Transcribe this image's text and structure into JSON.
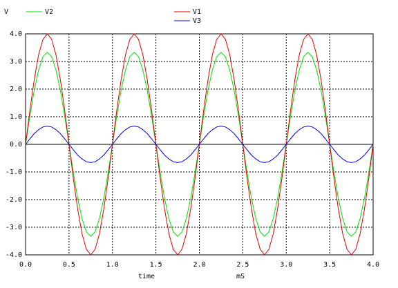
{
  "chart_data": {
    "type": "line",
    "ylabel": "V",
    "xlabel": "time",
    "xunit": "mS",
    "x": [
      0,
      0.05,
      0.1,
      0.15,
      0.2,
      0.25,
      0.3,
      0.35,
      0.4,
      0.45,
      0.5,
      0.55,
      0.6,
      0.65,
      0.7,
      0.75,
      0.8,
      0.85,
      0.9,
      0.95,
      1,
      1.05,
      1.1,
      1.15,
      1.2,
      1.25,
      1.3,
      1.35,
      1.4,
      1.45,
      1.5,
      1.55,
      1.6,
      1.65,
      1.7,
      1.75,
      1.8,
      1.85,
      1.9,
      1.95,
      2,
      2.05,
      2.1,
      2.15,
      2.2,
      2.25,
      2.3,
      2.35,
      2.4,
      2.45,
      2.5,
      2.55,
      2.6,
      2.65,
      2.7,
      2.75,
      2.8,
      2.85,
      2.9,
      2.95,
      3,
      3.05,
      3.1,
      3.15,
      3.2,
      3.25,
      3.3,
      3.35,
      3.4,
      3.45,
      3.5,
      3.55,
      3.6,
      3.65,
      3.7,
      3.75,
      3.8,
      3.85,
      3.9,
      3.95,
      4
    ],
    "series": [
      {
        "name": "V2",
        "color": "#00e000",
        "values": [
          0,
          1.03,
          1.96,
          2.69,
          3.17,
          3.33,
          3.17,
          2.69,
          1.96,
          1.03,
          0,
          -1.03,
          -1.96,
          -2.69,
          -3.17,
          -3.33,
          -3.17,
          -2.69,
          -1.96,
          -1.03,
          0,
          1.03,
          1.96,
          2.69,
          3.17,
          3.33,
          3.17,
          2.69,
          1.96,
          1.03,
          0,
          -1.03,
          -1.96,
          -2.69,
          -3.17,
          -3.33,
          -3.17,
          -2.69,
          -1.96,
          -1.03,
          0,
          1.03,
          1.96,
          2.69,
          3.17,
          3.33,
          3.17,
          2.69,
          1.96,
          1.03,
          0,
          -1.03,
          -1.96,
          -2.69,
          -3.17,
          -3.33,
          -3.17,
          -2.69,
          -1.96,
          -1.03,
          0,
          1.03,
          1.96,
          2.69,
          3.17,
          3.33,
          3.17,
          2.69,
          1.96,
          1.03,
          0,
          -1.03,
          -1.96,
          -2.69,
          -3.17,
          -3.33,
          -3.17,
          -2.69,
          -1.96,
          -1.03,
          0
        ]
      },
      {
        "name": "V1",
        "color": "#e00000",
        "values": [
          0,
          1.24,
          2.35,
          3.24,
          3.8,
          4,
          3.8,
          3.24,
          2.35,
          1.24,
          0,
          -1.24,
          -2.35,
          -3.24,
          -3.8,
          -4,
          -3.8,
          -3.24,
          -2.35,
          -1.24,
          0,
          1.24,
          2.35,
          3.24,
          3.8,
          4,
          3.8,
          3.24,
          2.35,
          1.24,
          0,
          -1.24,
          -2.35,
          -3.24,
          -3.8,
          -4,
          -3.8,
          -3.24,
          -2.35,
          -1.24,
          0,
          1.24,
          2.35,
          3.24,
          3.8,
          4,
          3.8,
          3.24,
          2.35,
          1.24,
          0,
          -1.24,
          -2.35,
          -3.24,
          -3.8,
          -4,
          -3.8,
          -3.24,
          -2.35,
          -1.24,
          0,
          1.24,
          2.35,
          3.24,
          3.8,
          4,
          3.8,
          3.24,
          2.35,
          1.24,
          0,
          -1.24,
          -2.35,
          -3.24,
          -3.8,
          -4,
          -3.8,
          -3.24,
          -2.35,
          -1.24,
          0
        ]
      },
      {
        "name": "V3",
        "color": "#0000e0",
        "values": [
          0,
          0.2,
          0.39,
          0.53,
          0.63,
          0.66,
          0.63,
          0.53,
          0.39,
          0.2,
          0,
          -0.2,
          -0.39,
          -0.53,
          -0.63,
          -0.66,
          -0.63,
          -0.53,
          -0.39,
          -0.2,
          0,
          0.2,
          0.39,
          0.53,
          0.63,
          0.66,
          0.63,
          0.53,
          0.39,
          0.2,
          0,
          -0.2,
          -0.39,
          -0.53,
          -0.63,
          -0.66,
          -0.63,
          -0.53,
          -0.39,
          -0.2,
          0,
          0.2,
          0.39,
          0.53,
          0.63,
          0.66,
          0.63,
          0.53,
          0.39,
          0.2,
          0,
          -0.2,
          -0.39,
          -0.53,
          -0.63,
          -0.66,
          -0.63,
          -0.53,
          -0.39,
          -0.2,
          0,
          0.2,
          0.39,
          0.53,
          0.63,
          0.66,
          0.63,
          0.53,
          0.39,
          0.2,
          0,
          -0.2,
          -0.39,
          -0.53,
          -0.63,
          -0.66,
          -0.63,
          -0.53,
          -0.39,
          -0.2,
          0
        ]
      }
    ],
    "xlim": [
      0,
      4
    ],
    "xticks": [
      {
        "value": 0,
        "label": "0.0"
      },
      0.5,
      {
        "value": 1,
        "label": "1.0"
      },
      1.5,
      {
        "value": 2,
        "label": "2.0"
      },
      2.5,
      {
        "value": 3,
        "label": "3.0"
      },
      3.5,
      {
        "value": 4,
        "label": "4.0"
      }
    ],
    "ylim": [
      -4,
      4
    ],
    "yticks": [
      {
        "value": -4,
        "label": "-4.0"
      },
      {
        "value": -3,
        "label": "-3.0"
      },
      {
        "value": -2,
        "label": "-2.0"
      },
      {
        "value": -1,
        "label": "-1.0"
      },
      {
        "value": 0,
        "label": "0.0"
      },
      {
        "value": 1,
        "label": "1.0"
      },
      {
        "value": 2,
        "label": "2.0"
      },
      {
        "value": 3,
        "label": "3.0"
      },
      {
        "value": 4,
        "label": "4.0"
      }
    ],
    "grid": true
  }
}
